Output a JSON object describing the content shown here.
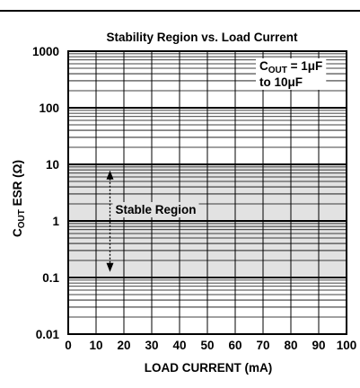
{
  "chart_data": {
    "type": "area",
    "title": "Stability Region vs. Load Current",
    "xlabel": "LOAD CURRENT (mA)",
    "ylabel": {
      "main": "C",
      "sub": "OUT",
      "rest": " ESR (Ω)"
    },
    "xlim": [
      0,
      100
    ],
    "ylim": [
      0.01,
      1000
    ],
    "yscale": "log",
    "grid": true,
    "x_ticks": [
      0,
      10,
      20,
      30,
      40,
      50,
      60,
      70,
      80,
      90,
      100
    ],
    "x_tick_labels": [
      "0",
      "10",
      "20",
      "30",
      "40",
      "50",
      "60",
      "70",
      "80",
      "90",
      "100"
    ],
    "y_ticks": [
      0.01,
      0.1,
      1,
      10,
      100,
      1000
    ],
    "y_tick_labels": [
      "0.01",
      "0.1",
      "1",
      "10",
      "100",
      "1000"
    ],
    "stable_region": {
      "label": "Stable Region",
      "esr_min": 0.1,
      "esr_max": 10,
      "x_min": 0,
      "x_max": 100,
      "color": "#e2e2e2"
    },
    "arrow": {
      "x": 15,
      "y_from": 7,
      "y_to": 0.14
    },
    "annotation": {
      "line1_main": "C",
      "line1_sub": "OUT",
      "line1_rest": " = 1μF",
      "line2": "to 10μF"
    }
  }
}
